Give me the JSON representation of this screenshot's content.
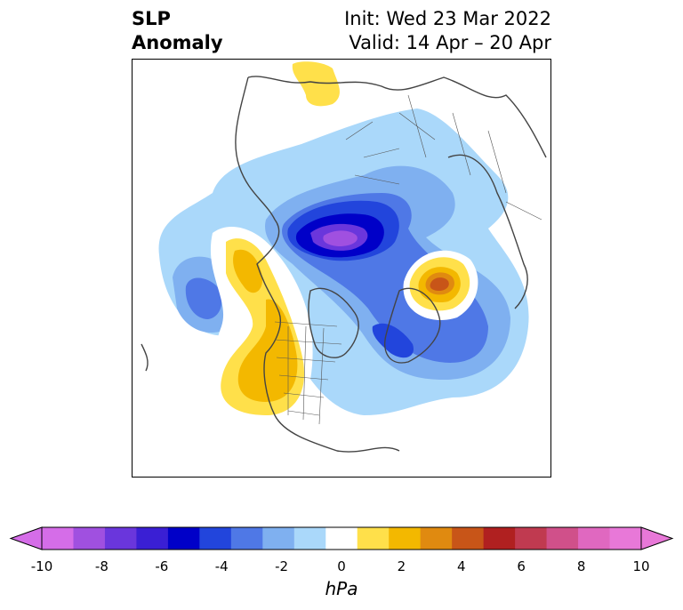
{
  "title": {
    "left_line1": "SLP",
    "left_line2": "Anomaly",
    "right_line1": "Init: Wed 23 Mar 2022",
    "right_line2": "Valid: 14 Apr – 20 Apr"
  },
  "map": {
    "projection": "north-polar",
    "features": [
      "coastlines",
      "country-borders",
      "state-borders"
    ]
  },
  "colorbar": {
    "units": "hPa",
    "ticks": [
      "-10",
      "-8",
      "-6",
      "-4",
      "-2",
      "0",
      "2",
      "4",
      "6",
      "8",
      "10"
    ],
    "levels": [
      -10,
      -9,
      -8,
      -7,
      -6,
      -5,
      -4,
      -3,
      -2,
      -1,
      1,
      2,
      3,
      4,
      5,
      6,
      7,
      8,
      9,
      10
    ],
    "colors": [
      "#d56de8",
      "#a050e0",
      "#6a36dc",
      "#3a1fd4",
      "#0000c8",
      "#2245dc",
      "#4f78e6",
      "#7fb0f0",
      "#aad8fa",
      "#ffffff",
      "#ffe04a",
      "#f3b800",
      "#e08a10",
      "#c85518",
      "#b02020",
      "#c03a50",
      "#d0508a",
      "#e068c0",
      "#e878d8"
    ],
    "extend": "both"
  }
}
